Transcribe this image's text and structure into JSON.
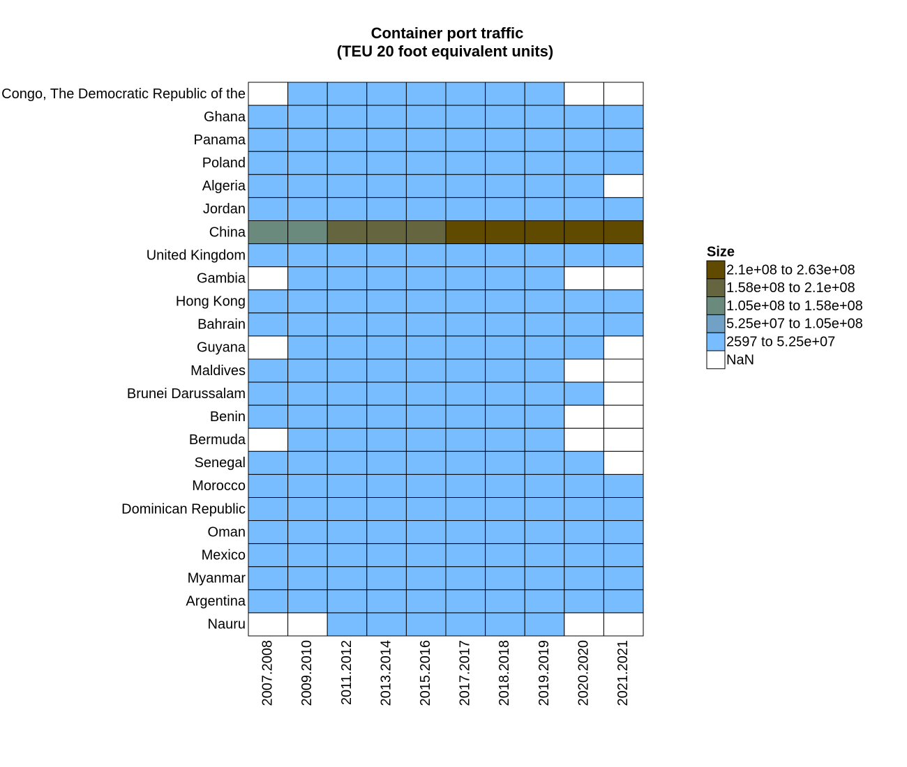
{
  "chart_data": {
    "type": "heatmap",
    "title": "Container port traffic",
    "subtitle": "(TEU 20 foot equivalent units)",
    "x": [
      "2007.2008",
      "2009.2010",
      "2011.2012",
      "2013.2014",
      "2015.2016",
      "2017.2017",
      "2018.2018",
      "2019.2019",
      "2020.2020",
      "2021.2021"
    ],
    "y": [
      "Congo, The Democratic Republic of the",
      "Ghana",
      "Panama",
      "Poland",
      "Algeria",
      "Jordan",
      "China",
      "United Kingdom",
      "Gambia",
      "Hong Kong",
      "Bahrain",
      "Guyana",
      "Maldives",
      "Brunei Darussalam",
      "Benin",
      "Bermuda",
      "Senegal",
      "Morocco",
      "Dominican Republic",
      "Oman",
      "Mexico",
      "Myanmar",
      "Argentina",
      "Nauru"
    ],
    "z": [
      [
        null,
        260000,
        300000,
        320000,
        350000,
        370000,
        390000,
        400000,
        null,
        null
      ],
      [
        700000,
        800000,
        900000,
        950000,
        1000000,
        1050000,
        1100000,
        1200000,
        1300000,
        1600000
      ],
      [
        5000000,
        5600000,
        6800000,
        6600000,
        6800000,
        6900000,
        7000000,
        7300000,
        7000000,
        8200000
      ],
      [
        850000,
        1000000,
        1800000,
        2000000,
        2300000,
        2700000,
        3000000,
        3100000,
        3000000,
        3200000
      ],
      [
        1000000,
        1100000,
        1200000,
        1300000,
        1400000,
        1400000,
        1400000,
        1400000,
        1300000,
        null
      ],
      [
        600000,
        700000,
        770000,
        800000,
        700000,
        800000,
        770000,
        800000,
        750000,
        800000
      ],
      [
        115000000,
        130000000,
        163000000,
        182000000,
        199000000,
        220000000,
        230000000,
        242000000,
        245000000,
        260000000
      ],
      [
        8600000,
        8200000,
        9000000,
        10000000,
        9900000,
        10000000,
        10200000,
        10000000,
        9800000,
        10000000
      ],
      [
        null,
        70000,
        80000,
        90000,
        100000,
        110000,
        120000,
        130000,
        null,
        null
      ],
      [
        24000000,
        23000000,
        24000000,
        22000000,
        20000000,
        20700000,
        19600000,
        18300000,
        17900000,
        17800000
      ],
      [
        250000,
        280000,
        330000,
        360000,
        380000,
        400000,
        410000,
        420000,
        430000,
        440000
      ],
      [
        null,
        50000,
        60000,
        70000,
        80000,
        90000,
        100000,
        110000,
        120000,
        null
      ],
      [
        60000,
        65000,
        70000,
        75000,
        80000,
        90000,
        100000,
        110000,
        null,
        null
      ],
      [
        100000,
        100000,
        110000,
        110000,
        110000,
        120000,
        120000,
        130000,
        140000,
        null
      ],
      [
        200000,
        250000,
        300000,
        350000,
        360000,
        370000,
        380000,
        390000,
        null,
        null
      ],
      [
        null,
        20000,
        20000,
        21000,
        21000,
        22000,
        22000,
        23000,
        null,
        null
      ],
      [
        350000,
        400000,
        420000,
        440000,
        500000,
        550000,
        600000,
        650000,
        700000,
        null
      ],
      [
        1200000,
        2000000,
        2500000,
        3000000,
        3500000,
        4000000,
        5000000,
        6000000,
        7000000,
        7200000
      ],
      [
        1100000,
        1200000,
        1300000,
        1400000,
        1500000,
        1600000,
        1700000,
        1800000,
        1900000,
        2000000
      ],
      [
        3500000,
        3800000,
        3900000,
        4000000,
        4000000,
        4200000,
        4400000,
        4500000,
        4600000,
        4700000
      ],
      [
        3000000,
        3800000,
        4200000,
        4900000,
        5400000,
        6300000,
        6900000,
        7100000,
        6900000,
        7500000
      ],
      [
        150000,
        180000,
        200000,
        250000,
        300000,
        400000,
        450000,
        500000,
        450000,
        400000
      ],
      [
        1700000,
        1800000,
        2000000,
        2100000,
        1900000,
        1800000,
        1900000,
        1800000,
        1700000,
        1800000
      ],
      [
        null,
        null,
        2597,
        2700,
        2800,
        2900,
        3000,
        3100,
        null,
        null
      ]
    ],
    "legend": {
      "title": "Size",
      "items": [
        {
          "label": "2.1e+08 to 2.63e+08",
          "from": 210000000,
          "to": 263000000,
          "color": "#5f4a00"
        },
        {
          "label": "1.58e+08 to 2.1e+08",
          "from": 158000000,
          "to": 210000000,
          "color": "#65653f"
        },
        {
          "label": "1.05e+08 to 1.58e+08",
          "from": 105000000,
          "to": 158000000,
          "color": "#6b8a7e"
        },
        {
          "label": "5.25e+07 to 1.05e+08",
          "from": 52500000,
          "to": 105000000,
          "color": "#71a2c6"
        },
        {
          "label": "2597 to 5.25e+07",
          "from": 2597,
          "to": 52500000,
          "color": "#77bdff"
        },
        {
          "label": "NaN",
          "color": "#ffffff"
        }
      ]
    }
  }
}
